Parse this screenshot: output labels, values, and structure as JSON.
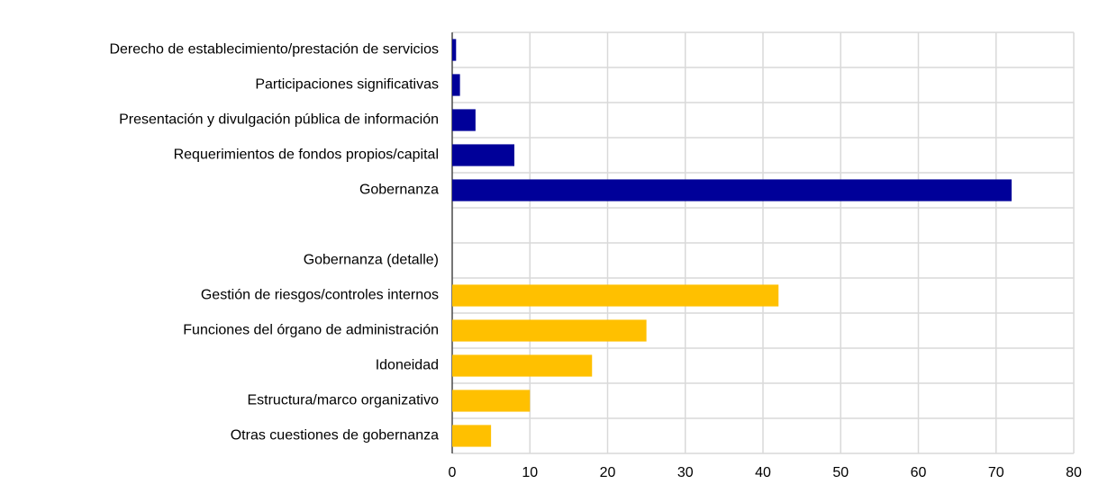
{
  "chart_data": {
    "type": "hbar",
    "categories": [
      "Derecho de establecimiento/prestación de servicios",
      "Participaciones significativas",
      "Presentación y divulgación pública de información",
      "Requerimientos de fondos propios/capital",
      "Gobernanza",
      null,
      "Gobernanza (detalle)",
      "Gestión de riesgos/controles internos",
      "Funciones del órgano de administración",
      "Idoneidad",
      "Estructura/marco organizativo",
      "Otras cuestiones de gobernanza"
    ],
    "series": [
      {
        "color": "#000099",
        "values": [
          0.5,
          1,
          3,
          8,
          72,
          null,
          null,
          null,
          null,
          null,
          null,
          null
        ]
      },
      {
        "color": "#ffc000",
        "values": [
          null,
          null,
          null,
          null,
          null,
          null,
          null,
          42,
          25,
          18,
          10,
          5
        ]
      }
    ],
    "xlim": [
      0,
      80
    ],
    "xticks": [
      0,
      10,
      20,
      30,
      40,
      50,
      60,
      70,
      80
    ],
    "grid": true
  }
}
